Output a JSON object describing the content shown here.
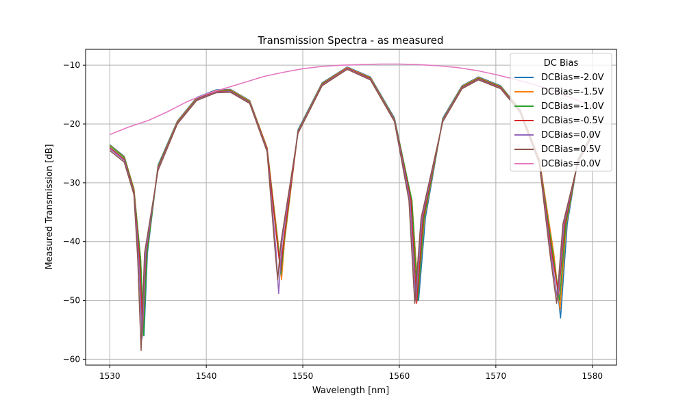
{
  "chart_data": {
    "type": "line",
    "title": "Transmission Spectra - as measured",
    "xlabel": "Wavelength [nm]",
    "ylabel": "Measured Transmission [dB]",
    "xlim": [
      1527.5,
      1582.5
    ],
    "ylim": [
      -61,
      -7.3
    ],
    "xticks": [
      1530,
      1540,
      1550,
      1560,
      1570,
      1580
    ],
    "yticks": [
      -60,
      -50,
      -40,
      -30,
      -20,
      -10
    ],
    "grid": true,
    "legend": {
      "title": "DC Bias",
      "placement": "top-right"
    },
    "series": [
      {
        "name": "DCBias=-2.0V",
        "color": "#1f77b4",
        "x": [
          1530,
          1531.5,
          1532.5,
          1533.2,
          1533.55,
          1533.9,
          1535,
          1537,
          1539,
          1541,
          1542.5,
          1544.5,
          1546.3,
          1547.5,
          1547.8,
          1548.1,
          1549.5,
          1552,
          1554.6,
          1557,
          1559.5,
          1561.3,
          1562.0,
          1562.7,
          1564.5,
          1566.5,
          1568.2,
          1570.5,
          1572.5,
          1574.5,
          1576.0,
          1576.7,
          1577.4,
          1578.5,
          1580
        ],
        "y": [
          -23.5,
          -25.5,
          -31,
          -43,
          -56,
          -42,
          -27,
          -19.5,
          -15.5,
          -14.2,
          -14.1,
          -16,
          -24,
          -41,
          -46,
          -40,
          -21,
          -13,
          -10.3,
          -12,
          -19,
          -33,
          -50,
          -36,
          -19,
          -13.5,
          -12,
          -13.5,
          -17.5,
          -26,
          -42,
          -53,
          -37,
          -26,
          -21.5
        ]
      },
      {
        "name": "DCBias=-1.5V",
        "color": "#ff7f0e",
        "x": [
          1530,
          1531.5,
          1532.5,
          1533.2,
          1533.5,
          1533.85,
          1535,
          1537,
          1539,
          1541,
          1542.5,
          1544.5,
          1546.3,
          1547.5,
          1547.8,
          1548.1,
          1549.5,
          1552,
          1554.6,
          1557,
          1559.5,
          1561.3,
          1561.95,
          1562.6,
          1564.5,
          1566.5,
          1568.2,
          1570.5,
          1572.5,
          1574.5,
          1576.0,
          1576.65,
          1577.3,
          1578.5,
          1580
        ],
        "y": [
          -23.6,
          -25.6,
          -31,
          -43,
          -55.5,
          -42,
          -27.2,
          -19.6,
          -15.6,
          -14.3,
          -14.2,
          -16.1,
          -24,
          -41,
          -46.5,
          -40,
          -21.2,
          -13.1,
          -10.4,
          -12.1,
          -19.2,
          -33,
          -49,
          -36,
          -19.2,
          -13.6,
          -12.1,
          -13.6,
          -17.6,
          -26,
          -42,
          -51.5,
          -37,
          -26.2,
          -21.6
        ]
      },
      {
        "name": "DCBias=-1.0V",
        "color": "#2ca02c",
        "x": [
          1530,
          1531.5,
          1532.5,
          1533.2,
          1533.5,
          1533.85,
          1535,
          1537,
          1539,
          1541,
          1542.5,
          1544.5,
          1546.3,
          1547.45,
          1547.75,
          1548.05,
          1549.5,
          1552,
          1554.6,
          1557,
          1559.5,
          1561.3,
          1561.9,
          1562.55,
          1564.5,
          1566.5,
          1568.2,
          1570.5,
          1572.5,
          1574.5,
          1575.9,
          1576.6,
          1577.25,
          1578.5,
          1580
        ],
        "y": [
          -23.7,
          -25.7,
          -31.2,
          -43,
          -56,
          -42,
          -27.3,
          -19.7,
          -15.7,
          -14.4,
          -14.3,
          -16.2,
          -24.2,
          -41,
          -45.5,
          -40,
          -21.3,
          -13.2,
          -10.5,
          -12.2,
          -19.3,
          -33,
          -50,
          -36,
          -19.3,
          -13.7,
          -12.2,
          -13.7,
          -17.7,
          -26.2,
          -42,
          -50,
          -37,
          -26.3,
          -21.7
        ]
      },
      {
        "name": "DCBias=-0.5V",
        "color": "#d62728",
        "x": [
          1530,
          1531.5,
          1532.5,
          1533.1,
          1533.4,
          1533.75,
          1535,
          1537,
          1539,
          1541,
          1542.5,
          1544.5,
          1546.3,
          1547.4,
          1547.7,
          1548.0,
          1549.5,
          1552,
          1554.6,
          1557,
          1559.5,
          1561.2,
          1561.8,
          1562.45,
          1564.5,
          1566.5,
          1568.2,
          1570.5,
          1572.5,
          1574.5,
          1575.8,
          1576.5,
          1577.15,
          1578.5,
          1580
        ],
        "y": [
          -24,
          -26,
          -31.5,
          -43,
          -55,
          -42,
          -27.5,
          -19.8,
          -15.8,
          -14.5,
          -14.4,
          -16.3,
          -24.3,
          -41,
          -45,
          -40,
          -21.4,
          -13.3,
          -10.5,
          -12.3,
          -19.4,
          -33,
          -50.5,
          -36,
          -19.4,
          -13.8,
          -12.3,
          -13.8,
          -17.8,
          -26.3,
          -42,
          -49,
          -37,
          -26.4,
          -21.8
        ]
      },
      {
        "name": "DCBias=0.0V",
        "color": "#9467bd",
        "x": [
          1530,
          1531.5,
          1532.5,
          1533.0,
          1533.35,
          1533.7,
          1535,
          1537,
          1539,
          1541,
          1542.5,
          1544.5,
          1546.3,
          1547.2,
          1547.5,
          1547.85,
          1549.5,
          1552,
          1554.6,
          1557,
          1559.5,
          1561.1,
          1561.7,
          1562.35,
          1564.5,
          1566.5,
          1568.2,
          1570.5,
          1572.5,
          1574.5,
          1575.7,
          1576.4,
          1577.05,
          1578.5,
          1580
        ],
        "y": [
          -24.2,
          -26.2,
          -31.8,
          -43,
          -56.5,
          -42,
          -27.7,
          -19.9,
          -15.9,
          -14.6,
          -14.5,
          -16.4,
          -24.5,
          -41,
          -48.8,
          -40,
          -21.5,
          -13.4,
          -10.6,
          -12.4,
          -19.5,
          -33,
          -50,
          -36,
          -19.5,
          -13.9,
          -12.4,
          -13.9,
          -17.9,
          -26.5,
          -42,
          -50,
          -37,
          -26.5,
          -21.9
        ]
      },
      {
        "name": "DCBias=0.5V",
        "color": "#8c564b",
        "x": [
          1530,
          1531.5,
          1532.5,
          1532.9,
          1533.25,
          1533.6,
          1535,
          1537,
          1539,
          1541,
          1542.5,
          1544.5,
          1546.3,
          1547.1,
          1547.4,
          1547.75,
          1549.5,
          1552,
          1554.6,
          1557,
          1559.5,
          1561.0,
          1561.6,
          1562.25,
          1564.5,
          1566.5,
          1568.2,
          1570.5,
          1572.5,
          1574.5,
          1575.6,
          1576.3,
          1576.95,
          1578.5,
          1580
        ],
        "y": [
          -24.5,
          -26.5,
          -32,
          -43,
          -58.5,
          -42,
          -27.9,
          -20,
          -16,
          -14.7,
          -14.6,
          -16.5,
          -24.7,
          -41,
          -46.5,
          -40,
          -21.6,
          -13.5,
          -10.7,
          -12.5,
          -19.6,
          -33,
          -50.5,
          -36,
          -19.6,
          -14,
          -12.5,
          -14,
          -18,
          -26.7,
          -42,
          -50.5,
          -37,
          -26.6,
          -22
        ]
      },
      {
        "name": "DCBias=0.0V",
        "color": "#e377c2",
        "x": [
          1530,
          1532,
          1534,
          1536,
          1538,
          1540,
          1542,
          1544,
          1546,
          1548,
          1550,
          1552,
          1554,
          1556,
          1558,
          1560,
          1562,
          1564,
          1566,
          1568,
          1570,
          1572,
          1574,
          1576,
          1578,
          1580
        ],
        "y": [
          -21.8,
          -20.5,
          -19.4,
          -17.9,
          -16.2,
          -14.9,
          -13.9,
          -12.9,
          -11.9,
          -11.2,
          -10.6,
          -10.2,
          -10.0,
          -9.9,
          -9.8,
          -9.8,
          -9.9,
          -10.1,
          -10.4,
          -10.9,
          -11.6,
          -12.4,
          -13.3,
          -14.4,
          -15.7,
          -17
        ]
      }
    ]
  }
}
